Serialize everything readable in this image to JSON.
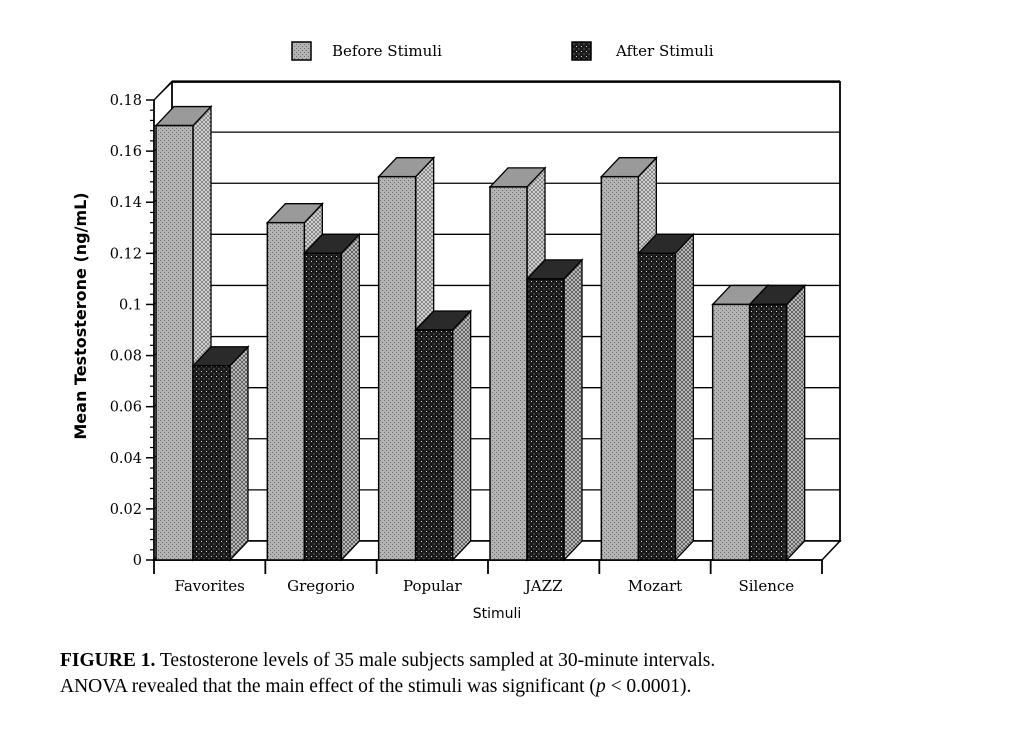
{
  "chart_data": {
    "type": "bar",
    "style": "3d",
    "categories": [
      "Favorites",
      "Gregorio",
      "Popular",
      "JAZZ",
      "Mozart",
      "Silence"
    ],
    "series": [
      {
        "name": "Before Stimuli",
        "values": [
          0.17,
          0.132,
          0.15,
          0.146,
          0.15,
          0.1
        ]
      },
      {
        "name": "After Stimuli",
        "values": [
          0.076,
          0.12,
          0.09,
          0.11,
          0.12,
          0.1
        ]
      }
    ],
    "xlabel": "Stimuli",
    "ylabel": "Mean Testosterone (ng/mL)",
    "ylim": [
      0,
      0.18
    ],
    "yticks": [
      "0",
      "0.02",
      "0.04",
      "0.06",
      "0.08",
      "0.1",
      "0.12",
      "0.14",
      "0.16",
      "0.18"
    ],
    "grid": true,
    "legend_position": "top"
  },
  "caption": {
    "label": "FIGURE 1.",
    "line1": "Testosterone levels of 35 male subjects sampled at 30-minute intervals.",
    "line2": "ANOVA revealed that the main effect of the stimuli was significant (",
    "p_symbol": "p",
    "line2_end": " < 0.0001)."
  }
}
